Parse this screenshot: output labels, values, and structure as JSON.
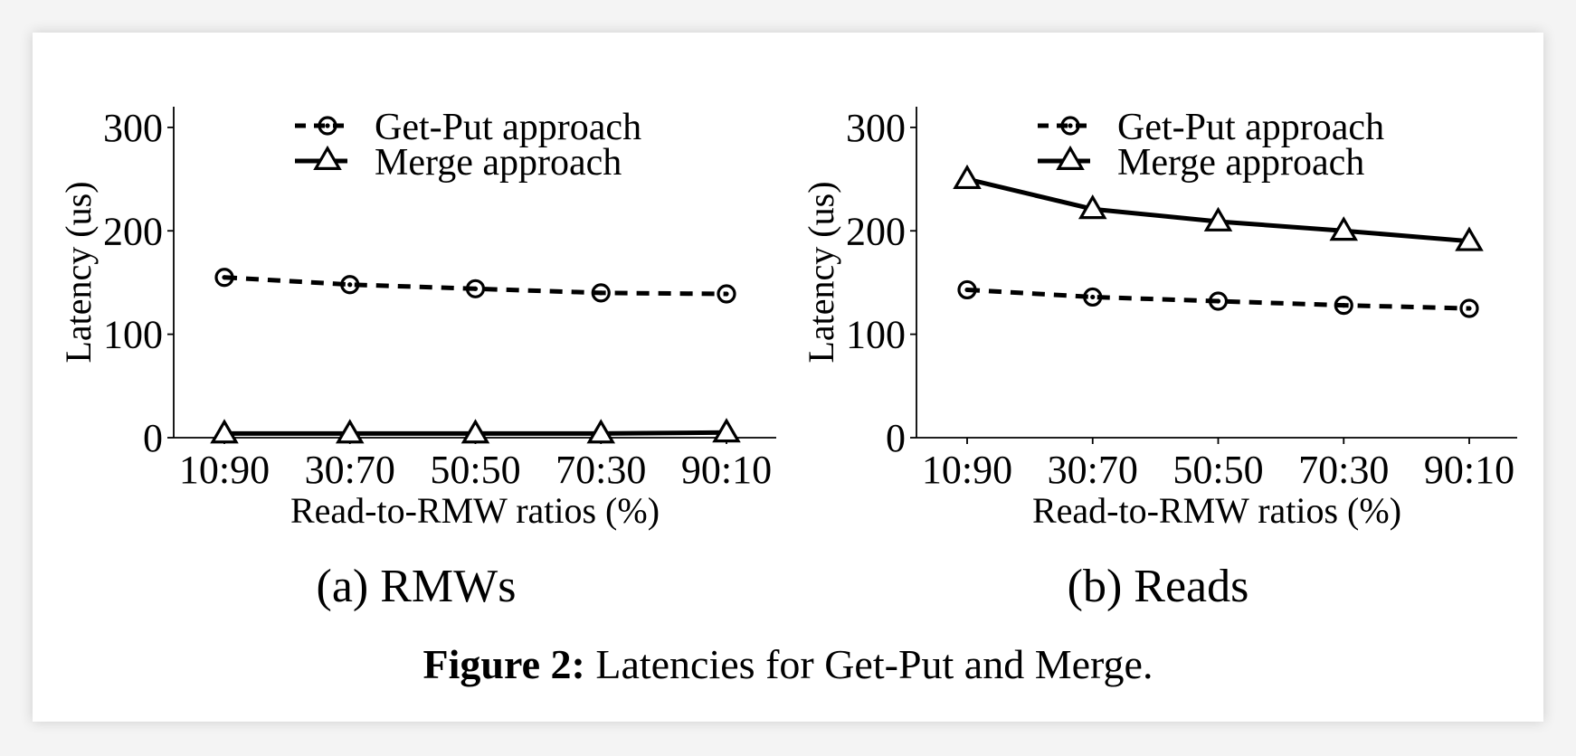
{
  "caption": {
    "label": "Figure 2:",
    "text": " Latencies for Get-Put and Merge."
  },
  "chart_data": [
    {
      "type": "line",
      "title": "(a) RMWs",
      "xlabel": "Read-to-RMW ratios (%)",
      "ylabel": "Latency (us)",
      "categories": [
        "10:90",
        "30:70",
        "50:50",
        "70:30",
        "90:10"
      ],
      "yticks": [
        0,
        100,
        200,
        300
      ],
      "ylim": [
        0,
        320
      ],
      "legend_position": "top-center",
      "grid": false,
      "series": [
        {
          "name": "Get-Put approach",
          "values": [
            155,
            148,
            144,
            140,
            139
          ],
          "style": "dashed",
          "marker": "circle",
          "color": "#000000"
        },
        {
          "name": "Merge approach",
          "values": [
            4,
            4,
            4,
            4,
            5
          ],
          "style": "solid",
          "marker": "triangle",
          "color": "#000000"
        }
      ]
    },
    {
      "type": "line",
      "title": "(b) Reads",
      "xlabel": "Read-to-RMW ratios (%)",
      "ylabel": "Latency (us)",
      "categories": [
        "10:90",
        "30:70",
        "50:50",
        "70:30",
        "90:10"
      ],
      "yticks": [
        0,
        100,
        200,
        300
      ],
      "ylim": [
        0,
        320
      ],
      "legend_position": "top-center",
      "grid": false,
      "series": [
        {
          "name": "Get-Put approach",
          "values": [
            143,
            136,
            132,
            128,
            125
          ],
          "style": "dashed",
          "marker": "circle",
          "color": "#000000"
        },
        {
          "name": "Merge approach",
          "values": [
            250,
            221,
            209,
            200,
            190
          ],
          "style": "solid",
          "marker": "triangle",
          "color": "#000000"
        }
      ]
    }
  ]
}
